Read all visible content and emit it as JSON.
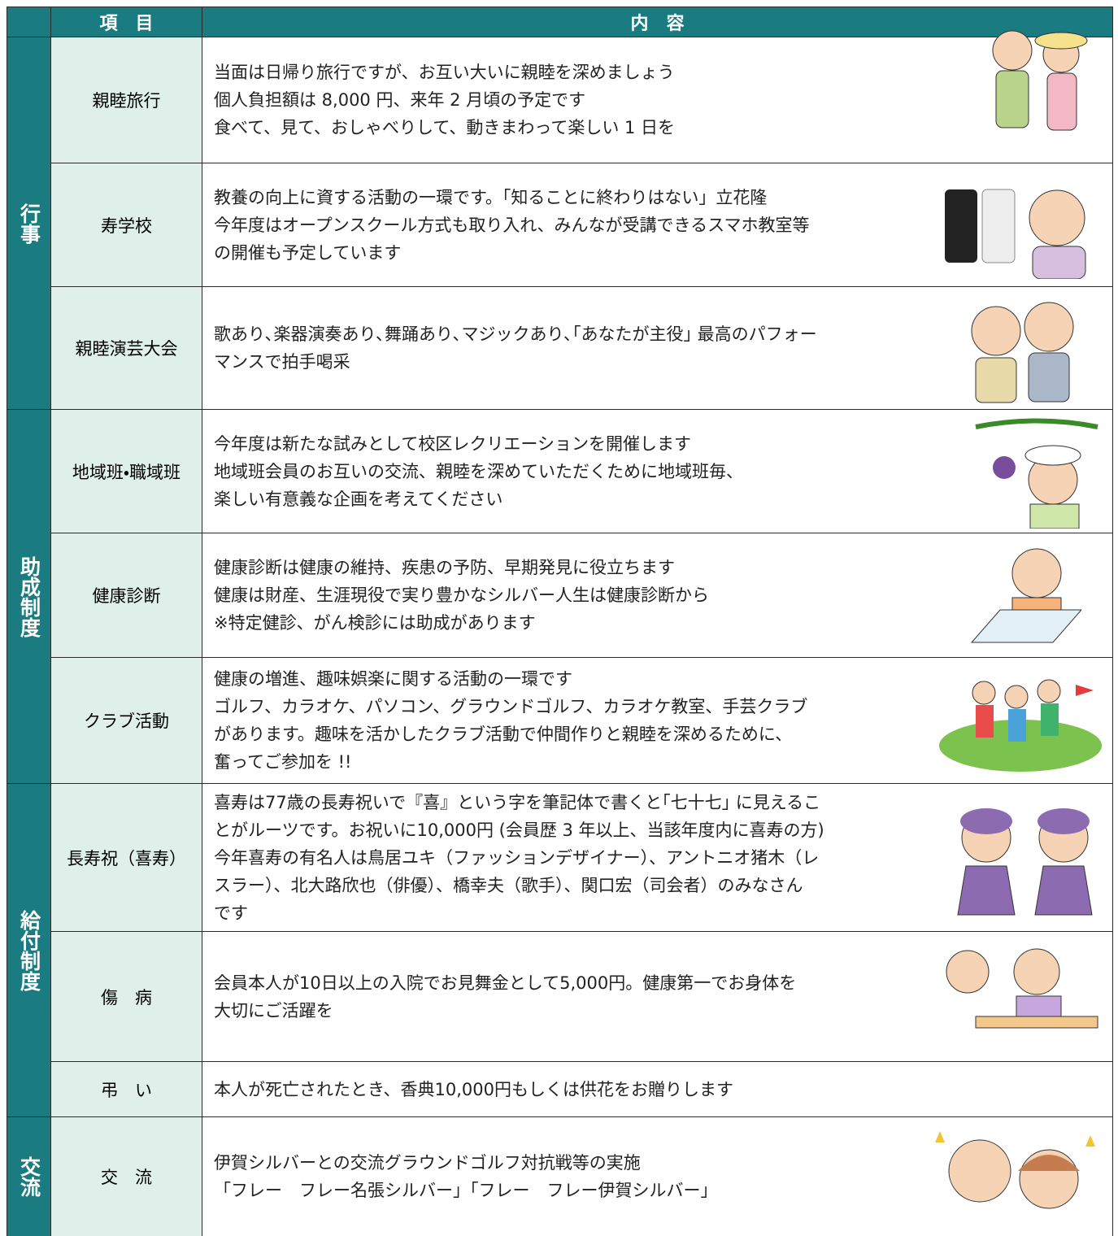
{
  "header": {
    "item": "項　目",
    "content": "内　容"
  },
  "sections": [
    {
      "label": "行事",
      "rows": [
        {
          "item": "親睦旅行",
          "lines": [
            "当面は日帰り旅行ですが、お互い大いに親睦を深めましょう",
            "個人負担額は 8,000 円、来年 2 月頃の予定です",
            "食べて、見て、おしゃべりして、動きまわって楽しい 1 日を"
          ]
        },
        {
          "item": "寿学校",
          "lines": [
            "教養の向上に資する活動の一環です。「知ることに終わりはない」立花隆",
            "今年度はオープンスクール方式も取り入れ、みんなが受講できるスマホ教室等",
            "の開催も予定しています"
          ]
        },
        {
          "item": "親睦演芸大会",
          "lines": [
            "歌あり､楽器演奏あり､舞踊あり､マジックあり､｢あなたが主役｣ 最高のパフォー",
            "マンスで拍手喝采"
          ]
        }
      ]
    },
    {
      "label": "助成制度",
      "rows": [
        {
          "item": "地域班・職域班",
          "lines": [
            "今年度は新たな試みとして校区レクリエーションを開催します",
            "地域班会員のお互いの交流、親睦を深めていただくために地域班毎、",
            "楽しい有意義な企画を考えてください"
          ]
        },
        {
          "item": "健康診断",
          "lines": [
            "健康診断は健康の維持、疾患の予防、早期発見に役立ちます",
            "健康は財産、生涯現役で実り豊かなシルバー人生は健康診断から",
            "※特定健診、がん検診には助成があります"
          ]
        },
        {
          "item": "クラブ活動",
          "lines": [
            "健康の増進、趣味娯楽に関する活動の一環です",
            "ゴルフ、カラオケ、パソコン、グラウンドゴルフ、カラオケ教室、手芸クラブ",
            "があります。趣味を活かしたクラブ活動で仲間作りと親睦を深めるために、",
            "奮ってご参加を !!"
          ]
        }
      ]
    },
    {
      "label": "給付制度",
      "rows": [
        {
          "item": "長寿祝（喜寿）",
          "lines": [
            "喜寿は77歳の長寿祝いで『喜』という字を筆記体で書くと｢七十七｣ に見えるこ",
            "とがルーツです。お祝いに10,000円 (会員歴 3 年以上、当該年度内に喜寿の方)",
            "今年喜寿の有名人は鳥居ユキ（ファッションデザイナー）、アントニオ猪木（レ",
            "スラー）、北大路欣也（俳優）、橋幸夫（歌手）、関口宏（司会者）のみなさん",
            "です"
          ]
        },
        {
          "item": "傷　病",
          "lines": [
            "会員本人が10日以上の入院でお見舞金として5,000円。健康第一でお身体を",
            "大切にご活躍を"
          ]
        },
        {
          "item": "弔　い",
          "lines": [
            "本人が死亡されたとき、香典10,000円もしくは供花をお贈りします"
          ]
        }
      ]
    },
    {
      "label": "交流",
      "rows": [
        {
          "item": "交　流",
          "lines": [
            "伊賀シルバーとの交流グラウンドゴルフ対抗戦等の実施",
            "「フレー　フレー名張シルバー」「フレー　フレー伊賀シルバー」"
          ]
        }
      ]
    }
  ]
}
